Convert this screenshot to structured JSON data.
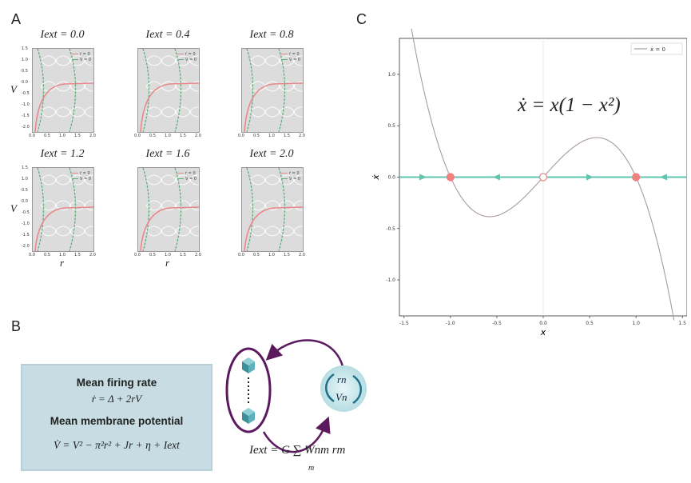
{
  "panels": {
    "a": "A",
    "b": "B",
    "c": "C"
  },
  "panel_a": {
    "subplots": [
      {
        "title": "I_ext = 0.0",
        "title_text": "Iext = 0.0"
      },
      {
        "title": "I_ext = 0.4",
        "title_text": "Iext = 0.4"
      },
      {
        "title": "I_ext = 0.8",
        "title_text": "Iext = 0.8"
      },
      {
        "title": "I_ext = 1.2",
        "title_text": "Iext = 1.2"
      },
      {
        "title": "I_ext = 1.6",
        "title_text": "Iext = 1.6"
      },
      {
        "title": "I_ext = 2.0",
        "title_text": "Iext = 2.0"
      }
    ],
    "legend": {
      "r_null": "ṙ = 0",
      "v_null": "V̇ = 0"
    },
    "ylabel": "V",
    "xlabel": "r",
    "yticks": [
      "1.5",
      "1.0",
      "0.5",
      "0.0",
      "-0.5",
      "-1.0",
      "-1.5",
      "-2.0"
    ],
    "xticks": [
      "0.0",
      "0.5",
      "1.0",
      "1.5",
      "2.0"
    ],
    "colors": {
      "r_null": "#e8888a",
      "v_null": "#5fae7e",
      "stream": "#ffffff",
      "bg": "#dcdcdc"
    }
  },
  "panel_b": {
    "box": {
      "heading1": "Mean firing rate",
      "eq1": "ṙ = Δ + 2rV",
      "heading2": "Mean membrane potential",
      "eq2": "V̇ = V² − π²r² + Jr + η + Iext"
    },
    "coupling_eq": "Iext = G ∑ Wnm rm",
    "coupling_sub": "m",
    "node_labels": {
      "top": "rn",
      "bottom": "Vn"
    },
    "colors": {
      "box_bg": "#c8dde3",
      "arrow": "#5c1a5e",
      "node": "#4a9ea8"
    }
  },
  "panel_c": {
    "equation": "ẋ = x(1 − x²)",
    "legend": "ẋ = 0",
    "xlabel": "x",
    "ylabel": "ẋ",
    "colors": {
      "curve": "#a99aa0",
      "axis_line": "#5fc4b0",
      "stable": "#f08080"
    }
  },
  "chart_data": {
    "type": "line",
    "title": "",
    "xlabel": "x",
    "ylabel": "ẋ",
    "xlim": [
      -1.55,
      1.55
    ],
    "ylim": [
      -1.35,
      1.35
    ],
    "xticks": [
      -1.5,
      -1.0,
      -0.5,
      0.0,
      0.5,
      1.0,
      1.5
    ],
    "yticks": [
      1.0,
      0.5,
      0.0,
      -0.5,
      -1.0
    ],
    "function": "x(1 - x^2)",
    "series": [
      {
        "name": "ẋ = 0",
        "x": [
          -1.4,
          -1.2,
          -1.0,
          -0.8,
          -0.577,
          -0.4,
          -0.2,
          0.0,
          0.2,
          0.4,
          0.577,
          0.8,
          1.0,
          1.2,
          1.4
        ],
        "y": [
          1.344,
          0.528,
          0.0,
          -0.288,
          -0.385,
          -0.336,
          -0.192,
          0.0,
          0.192,
          0.336,
          0.385,
          0.288,
          0.0,
          -0.528,
          -1.344
        ]
      }
    ],
    "fixed_points": [
      {
        "x": -1.0,
        "type": "stable"
      },
      {
        "x": 0.0,
        "type": "unstable"
      },
      {
        "x": 1.0,
        "type": "stable"
      }
    ],
    "flow_arrows": [
      {
        "x": -1.3,
        "dir": "right"
      },
      {
        "x": -0.5,
        "dir": "left"
      },
      {
        "x": 0.5,
        "dir": "right"
      },
      {
        "x": 1.3,
        "dir": "left"
      }
    ],
    "legend_position": "top-right",
    "grid": false
  }
}
